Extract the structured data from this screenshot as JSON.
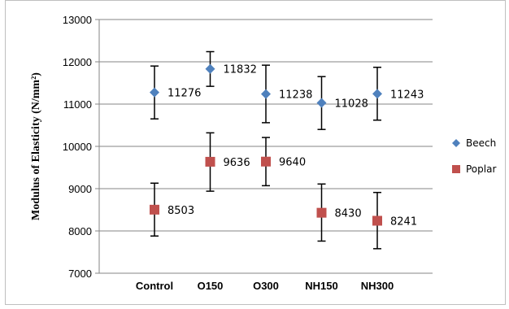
{
  "chart_data": {
    "type": "scatter",
    "title": "",
    "xlabel": "",
    "ylabel": "Modulus of Elasticity (N/mm²)",
    "ylim": [
      7000,
      13000
    ],
    "yticks": [
      7000,
      8000,
      9000,
      10000,
      11000,
      12000,
      13000
    ],
    "ytick_labels": [
      "7000",
      "8000",
      "9000",
      "10000",
      "11000",
      "12000",
      "13000"
    ],
    "categories": [
      "Control",
      "O150",
      "O300",
      "NH150",
      "NH300"
    ],
    "grid": true,
    "legend_position": "right",
    "error_bars": true,
    "series": [
      {
        "name": "Beech",
        "marker": "diamond",
        "color": "#4f81bd",
        "values": [
          11276,
          11832,
          11238,
          11028,
          11243
        ],
        "labels": [
          "11276",
          "11832",
          "11238",
          "11028",
          "11243"
        ],
        "error_low": [
          10650,
          11420,
          10560,
          10400,
          10620
        ],
        "error_high": [
          11900,
          12240,
          11920,
          11650,
          11870
        ]
      },
      {
        "name": "Poplar",
        "marker": "square",
        "color": "#c0504d",
        "values": [
          8503,
          9636,
          9640,
          8430,
          8241
        ],
        "labels": [
          "8503",
          "9636",
          "9640",
          "8430",
          "8241"
        ],
        "error_low": [
          7880,
          8940,
          9070,
          7760,
          7580
        ],
        "error_high": [
          9130,
          10320,
          10210,
          9110,
          8910
        ]
      }
    ]
  }
}
